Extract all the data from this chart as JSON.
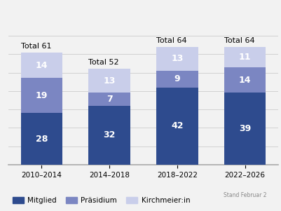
{
  "categories": [
    "2010–2014",
    "2014–2018",
    "2018–2022",
    "2022–2026"
  ],
  "mitglied": [
    28,
    32,
    42,
    39
  ],
  "praesidium": [
    19,
    7,
    9,
    14
  ],
  "kirchmeier": [
    14,
    13,
    13,
    11
  ],
  "totals": [
    "Total 61",
    "Total 52",
    "Total 64",
    "Total 64"
  ],
  "color_mitglied": "#2E4B8E",
  "color_praesidium": "#7B86C2",
  "color_kirchmeier": "#C9CEEA",
  "bar_width": 0.62,
  "ylim": [
    0,
    78
  ],
  "legend_labels": [
    "Mitglied",
    "Präsidium",
    "Kirchmeier:in"
  ],
  "xlabel_note": "Stand Februar 2",
  "background_color": "#f2f2f2",
  "label_fontsize": 9,
  "total_fontsize": 8,
  "tick_fontsize": 7.5,
  "legend_fontsize": 7.5
}
